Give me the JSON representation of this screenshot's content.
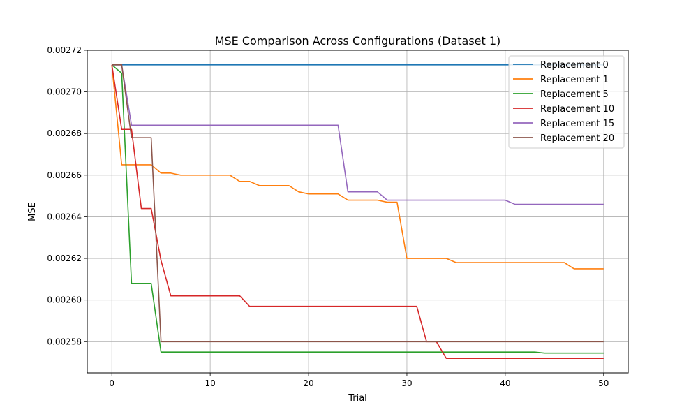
{
  "chart_data": {
    "type": "line",
    "title": "MSE Comparison Across Configurations (Dataset 1)",
    "xlabel": "Trial",
    "ylabel": "MSE",
    "xlim": [
      -2.5,
      52.5
    ],
    "ylim": [
      0.002565,
      0.00272
    ],
    "xticks": [
      0,
      10,
      20,
      30,
      40,
      50
    ],
    "yticks": [
      0.00258,
      0.0026,
      0.00262,
      0.00264,
      0.00266,
      0.00268,
      0.0027,
      0.00272
    ],
    "ytick_labels": [
      "0.00258",
      "0.00260",
      "0.00262",
      "0.00264",
      "0.00266",
      "0.00268",
      "0.00270",
      "0.00272"
    ],
    "grid": true,
    "legend_position": "top-right",
    "series": [
      {
        "name": "Replacement 0",
        "color": "#1f77b4",
        "points": [
          [
            0,
            0.002713
          ],
          [
            50,
            0.002713
          ]
        ]
      },
      {
        "name": "Replacement 1",
        "color": "#ff7f0e",
        "points": [
          [
            0,
            0.002713
          ],
          [
            1,
            0.002665
          ],
          [
            4,
            0.002665
          ],
          [
            5,
            0.002661
          ],
          [
            6,
            0.002661
          ],
          [
            7,
            0.00266
          ],
          [
            11,
            0.00266
          ],
          [
            12,
            0.00266
          ],
          [
            13,
            0.002657
          ],
          [
            14,
            0.002657
          ],
          [
            15,
            0.002655
          ],
          [
            18,
            0.002655
          ],
          [
            19,
            0.002652
          ],
          [
            20,
            0.002651
          ],
          [
            22,
            0.002651
          ],
          [
            23,
            0.002651
          ],
          [
            24,
            0.002648
          ],
          [
            27,
            0.002648
          ],
          [
            28,
            0.002647
          ],
          [
            29,
            0.002647
          ],
          [
            30,
            0.00262
          ],
          [
            34,
            0.00262
          ],
          [
            35,
            0.002618
          ],
          [
            46,
            0.002618
          ],
          [
            47,
            0.002615
          ],
          [
            50,
            0.002615
          ]
        ]
      },
      {
        "name": "Replacement 5",
        "color": "#2ca02c",
        "points": [
          [
            0,
            0.002713
          ],
          [
            1,
            0.002709
          ],
          [
            2,
            0.002608
          ],
          [
            4,
            0.002608
          ],
          [
            5,
            0.002575
          ],
          [
            43,
            0.002575
          ],
          [
            44,
            0.0025745
          ],
          [
            50,
            0.0025745
          ]
        ]
      },
      {
        "name": "Replacement 10",
        "color": "#d62728",
        "points": [
          [
            0,
            0.002713
          ],
          [
            1,
            0.002682
          ],
          [
            2,
            0.002682
          ],
          [
            3,
            0.002644
          ],
          [
            4,
            0.002644
          ],
          [
            5,
            0.002619
          ],
          [
            6,
            0.002602
          ],
          [
            13,
            0.002602
          ],
          [
            14,
            0.002597
          ],
          [
            31,
            0.002597
          ],
          [
            32,
            0.00258
          ],
          [
            33,
            0.00258
          ],
          [
            34,
            0.002572
          ],
          [
            50,
            0.002572
          ]
        ]
      },
      {
        "name": "Replacement 15",
        "color": "#9467bd",
        "points": [
          [
            0,
            0.002713
          ],
          [
            1,
            0.002713
          ],
          [
            2,
            0.002684
          ],
          [
            23,
            0.002684
          ],
          [
            24,
            0.002652
          ],
          [
            27,
            0.002652
          ],
          [
            28,
            0.002648
          ],
          [
            40,
            0.002648
          ],
          [
            41,
            0.002646
          ],
          [
            50,
            0.002646
          ]
        ]
      },
      {
        "name": "Replacement 20",
        "color": "#8c564b",
        "points": [
          [
            0,
            0.002713
          ],
          [
            1,
            0.002713
          ],
          [
            2,
            0.002678
          ],
          [
            4,
            0.002678
          ],
          [
            5,
            0.00258
          ],
          [
            50,
            0.00258
          ]
        ]
      }
    ]
  }
}
